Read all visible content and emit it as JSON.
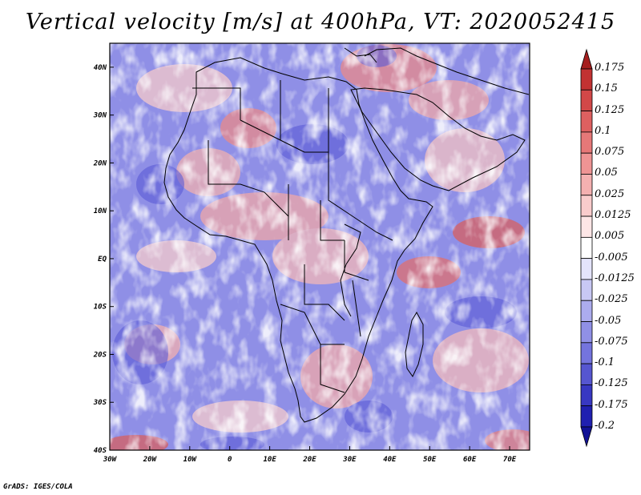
{
  "title": "Vertical velocity [m/s] at 400hPa, VT: 2020052415",
  "credit": "GrADS: IGES/COLA",
  "map": {
    "lon_range": [
      -30,
      75
    ],
    "lat_range": [
      -40,
      45
    ],
    "lon_labels": [
      "30W",
      "20W",
      "10W",
      "0",
      "10E",
      "20E",
      "30E",
      "40E",
      "50E",
      "60E",
      "70E"
    ],
    "lat_labels": [
      "40N",
      "30N",
      "20N",
      "10N",
      "EQ",
      "10S",
      "20S",
      "30S",
      "40S"
    ]
  },
  "colorbar": {
    "labels": [
      "0.175",
      "0.15",
      "0.125",
      "0.1",
      "0.075",
      "0.05",
      "0.025",
      "0.0125",
      "0.005",
      "-0.005",
      "-0.0125",
      "-0.025",
      "-0.05",
      "-0.075",
      "-0.1",
      "-0.125",
      "-0.175",
      "-0.2"
    ],
    "colors": [
      "#a51e1e",
      "#c23232",
      "#d24848",
      "#de6060",
      "#e67878",
      "#ee9494",
      "#f4b0b0",
      "#f9cccc",
      "#fde6e6",
      "#ffffff",
      "#e4e4fb",
      "#c8c8f4",
      "#acacee",
      "#9090e6",
      "#7474dd",
      "#5656d0",
      "#3838c2",
      "#2020b0",
      "#121296"
    ]
  }
}
